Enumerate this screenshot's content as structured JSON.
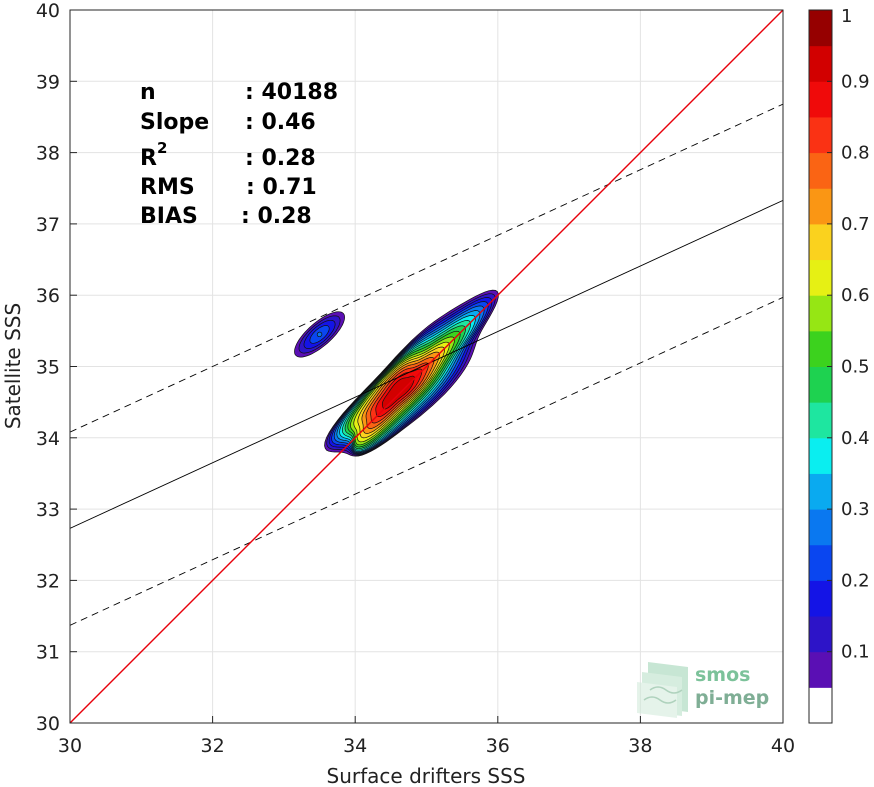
{
  "chart_data": {
    "type": "contour",
    "xlabel": "Surface drifters SSS",
    "ylabel": "Satellite SSS",
    "xlim": [
      30,
      40
    ],
    "ylim": [
      30,
      40
    ],
    "xticks": [
      30,
      32,
      34,
      36,
      38,
      40
    ],
    "yticks": [
      30,
      31,
      32,
      33,
      34,
      35,
      36,
      37,
      38,
      39,
      40
    ],
    "grid": true,
    "stats": {
      "n_label": "n",
      "n_value": ": 40188",
      "slope_label": "Slope",
      "slope_value": ": 0.46",
      "r2_label": "R",
      "r2_sup": "2",
      "r2_value": ": 0.28",
      "rms_label": "RMS",
      "rms_value": ": 0.71",
      "bias_label": "BIAS",
      "bias_value": ": 0.28"
    },
    "lines": {
      "identity": {
        "x": [
          30,
          40
        ],
        "y": [
          30,
          40
        ],
        "color": "#e8000b"
      },
      "regression": {
        "x": [
          30,
          40
        ],
        "y": [
          32.73,
          37.33
        ],
        "color": "#000000"
      },
      "upper_bound": {
        "x": [
          30,
          40
        ],
        "y": [
          34.08,
          38.68
        ],
        "color": "#000000",
        "style": "dashed"
      },
      "lower_bound": {
        "x": [
          30,
          40
        ],
        "y": [
          31.37,
          35.97
        ],
        "color": "#000000",
        "style": "dashed"
      }
    },
    "density_peak": {
      "x": 34.6,
      "y": 34.65
    },
    "colorbar": {
      "ticks": [
        0.1,
        0.2,
        0.3,
        0.4,
        0.5,
        0.6,
        0.7,
        0.8,
        0.9,
        1
      ],
      "tick_labels": [
        "0.1",
        "0.2",
        "0.3",
        "0.4",
        "0.5",
        "0.6",
        "0.7",
        "0.8",
        "0.9",
        "1"
      ],
      "levels": [
        0.05,
        0.1,
        0.15,
        0.2,
        0.25,
        0.3,
        0.35,
        0.4,
        0.45,
        0.5,
        0.55,
        0.6,
        0.65,
        0.7,
        0.75,
        0.8,
        0.85,
        0.9,
        0.95,
        1.0
      ],
      "colors": [
        "#ffffff",
        "#5a0fb4",
        "#2d14c8",
        "#1414e6",
        "#0a46f0",
        "#0a78f0",
        "#0aaaf0",
        "#0aeef0",
        "#1ee6a0",
        "#1ed250",
        "#3cd21e",
        "#96e614",
        "#e6f014",
        "#fad21e",
        "#fa9614",
        "#fa6414",
        "#fa3214",
        "#f00a0a",
        "#d20000",
        "#960000"
      ]
    }
  },
  "logo": {
    "line1": "smos",
    "line2": "pi-mep"
  }
}
